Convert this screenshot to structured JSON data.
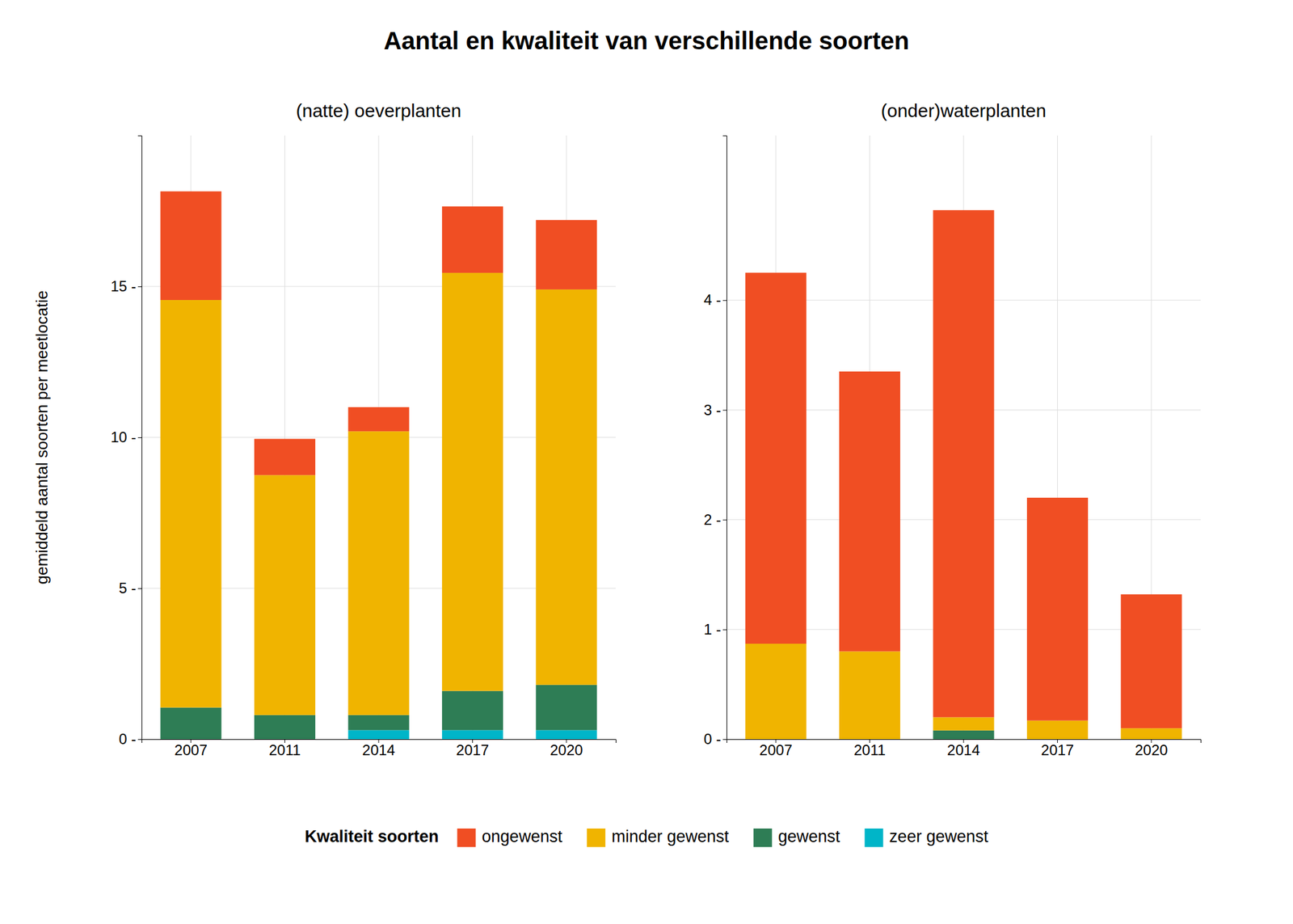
{
  "title": "Aantal en kwaliteit van verschillende soorten",
  "ylabel": "gemiddeld aantal soorten per meetlocatie",
  "legend_title": "Kwaliteit soorten",
  "legend": "bottom",
  "chart_data": [
    {
      "type": "bar",
      "stacked": true,
      "grid": true,
      "title": "(natte) oeverplanten",
      "categories": [
        "2007",
        "2011",
        "2014",
        "2017",
        "2020"
      ],
      "series": [
        {
          "name": "zeer gewenst",
          "color": "#00B5C8",
          "values": [
            0.0,
            0.0,
            0.3,
            0.3,
            0.3
          ]
        },
        {
          "name": "gewenst",
          "color": "#2E7D55",
          "values": [
            1.05,
            0.8,
            0.5,
            1.3,
            1.5
          ]
        },
        {
          "name": "minder gewenst",
          "color": "#F0B400",
          "values": [
            13.5,
            7.95,
            9.4,
            13.85,
            13.1
          ]
        },
        {
          "name": "ongewenst",
          "color": "#F04E23",
          "values": [
            3.6,
            1.2,
            0.8,
            2.2,
            2.3
          ]
        }
      ],
      "ylim": [
        0,
        20
      ],
      "yticks": [
        {
          "value": 0,
          "label": "0 -"
        },
        {
          "value": 5,
          "label": "5 -"
        },
        {
          "value": 10,
          "label": "10 -"
        },
        {
          "value": 15,
          "label": "15 -"
        }
      ]
    },
    {
      "type": "bar",
      "stacked": true,
      "grid": true,
      "title": "(onder)waterplanten",
      "categories": [
        "2007",
        "2011",
        "2014",
        "2017",
        "2020"
      ],
      "series": [
        {
          "name": "zeer gewenst",
          "color": "#00B5C8",
          "values": [
            0.0,
            0.0,
            0.0,
            0.0,
            0.0
          ]
        },
        {
          "name": "gewenst",
          "color": "#2E7D55",
          "values": [
            0.0,
            0.0,
            0.08,
            0.0,
            0.0
          ]
        },
        {
          "name": "minder gewenst",
          "color": "#F0B400",
          "values": [
            0.87,
            0.8,
            0.12,
            0.17,
            0.1
          ]
        },
        {
          "name": "ongewenst",
          "color": "#F04E23",
          "values": [
            3.38,
            2.55,
            4.62,
            2.03,
            1.22
          ]
        }
      ],
      "ylim": [
        0,
        5.5
      ],
      "yticks": [
        {
          "value": 0,
          "label": "0 -"
        },
        {
          "value": 1,
          "label": "1 -"
        },
        {
          "value": 2,
          "label": "2 -"
        },
        {
          "value": 3,
          "label": "3 -"
        },
        {
          "value": 4,
          "label": "4 -"
        }
      ]
    }
  ]
}
